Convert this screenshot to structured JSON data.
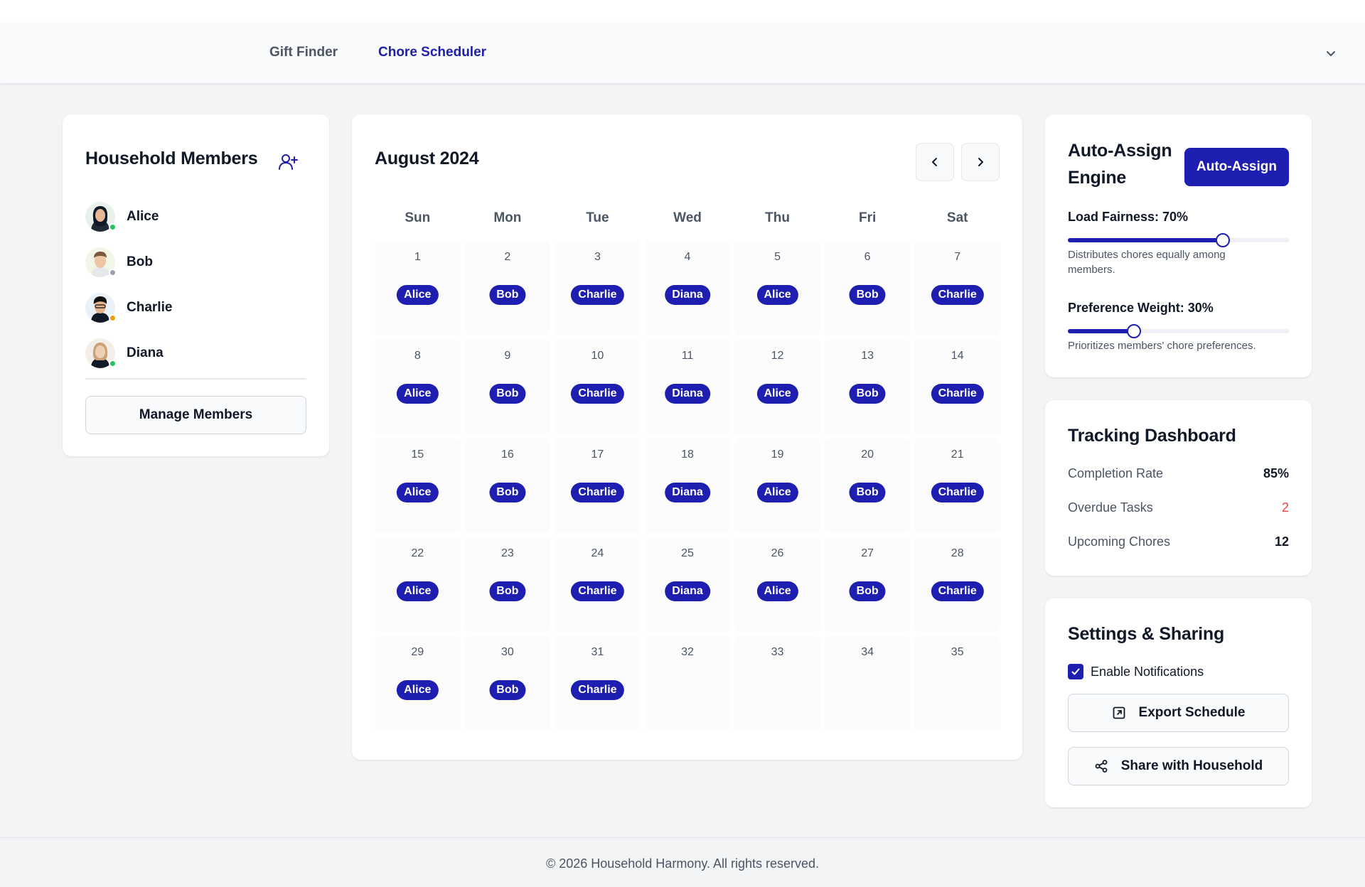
{
  "nav": {
    "links": [
      {
        "label": "Gift Finder",
        "active": false
      },
      {
        "label": "Chore Scheduler",
        "active": true
      }
    ],
    "menu_icon": "chevron-down-icon"
  },
  "members": {
    "title": "Household Members",
    "add_icon": "user-plus-icon",
    "items": [
      {
        "name": "Alice",
        "status": "online",
        "status_color": "#22c55e"
      },
      {
        "name": "Bob",
        "status": "offline",
        "status_color": "#9ca3af"
      },
      {
        "name": "Charlie",
        "status": "away",
        "status_color": "#f59e0b"
      },
      {
        "name": "Diana",
        "status": "online",
        "status_color": "#22c55e"
      }
    ],
    "manage_label": "Manage Members"
  },
  "calendar": {
    "title": "August 2024",
    "prev_icon": "chevron-left-icon",
    "next_icon": "chevron-right-icon",
    "weekdays": [
      "Sun",
      "Mon",
      "Tue",
      "Wed",
      "Thu",
      "Fri",
      "Sat"
    ],
    "days": [
      {
        "num": "1",
        "assignee": "Alice"
      },
      {
        "num": "2",
        "assignee": "Bob"
      },
      {
        "num": "3",
        "assignee": "Charlie"
      },
      {
        "num": "4",
        "assignee": "Diana"
      },
      {
        "num": "5",
        "assignee": "Alice"
      },
      {
        "num": "6",
        "assignee": "Bob"
      },
      {
        "num": "7",
        "assignee": "Charlie"
      },
      {
        "num": "8",
        "assignee": "Alice"
      },
      {
        "num": "9",
        "assignee": "Bob"
      },
      {
        "num": "10",
        "assignee": "Charlie"
      },
      {
        "num": "11",
        "assignee": "Diana"
      },
      {
        "num": "12",
        "assignee": "Alice"
      },
      {
        "num": "13",
        "assignee": "Bob"
      },
      {
        "num": "14",
        "assignee": "Charlie"
      },
      {
        "num": "15",
        "assignee": "Alice"
      },
      {
        "num": "16",
        "assignee": "Bob"
      },
      {
        "num": "17",
        "assignee": "Charlie"
      },
      {
        "num": "18",
        "assignee": "Diana"
      },
      {
        "num": "19",
        "assignee": "Alice"
      },
      {
        "num": "20",
        "assignee": "Bob"
      },
      {
        "num": "21",
        "assignee": "Charlie"
      },
      {
        "num": "22",
        "assignee": "Alice"
      },
      {
        "num": "23",
        "assignee": "Bob"
      },
      {
        "num": "24",
        "assignee": "Charlie"
      },
      {
        "num": "25",
        "assignee": "Diana"
      },
      {
        "num": "26",
        "assignee": "Alice"
      },
      {
        "num": "27",
        "assignee": "Bob"
      },
      {
        "num": "28",
        "assignee": "Charlie"
      },
      {
        "num": "29",
        "assignee": "Alice"
      },
      {
        "num": "30",
        "assignee": "Bob"
      },
      {
        "num": "31",
        "assignee": "Charlie"
      },
      {
        "num": "32",
        "assignee": ""
      },
      {
        "num": "33",
        "assignee": ""
      },
      {
        "num": "34",
        "assignee": ""
      },
      {
        "num": "35",
        "assignee": ""
      }
    ]
  },
  "auto_assign": {
    "title": "Auto-Assign Engine",
    "button_label": "Auto-Assign",
    "sliders": [
      {
        "label": "Load Fairness: 70%",
        "value": 0.7,
        "help": "Distributes chores equally among members."
      },
      {
        "label": "Preference Weight: 30%",
        "value": 0.3,
        "help": "Prioritizes members' chore preferences."
      }
    ]
  },
  "tracking": {
    "title": "Tracking Dashboard",
    "metrics": [
      {
        "label": "Completion Rate",
        "value": "85%",
        "color": "#111827"
      },
      {
        "label": "Overdue Tasks",
        "value": "2",
        "color": "#ef4444"
      },
      {
        "label": "Upcoming Chores",
        "value": "12",
        "color": "#111827"
      }
    ]
  },
  "settings": {
    "title": "Settings & Sharing",
    "notifications_label": "Enable Notifications",
    "notifications_checked": true,
    "export_label": "Export Schedule",
    "export_icon": "export-icon",
    "share_label": "Share with Household",
    "share_icon": "share-icon"
  },
  "colors": {
    "accent": "#1e1eb0",
    "danger": "#ef4444"
  },
  "footer": {
    "text": "© 2026 Household Harmony. All rights reserved."
  }
}
